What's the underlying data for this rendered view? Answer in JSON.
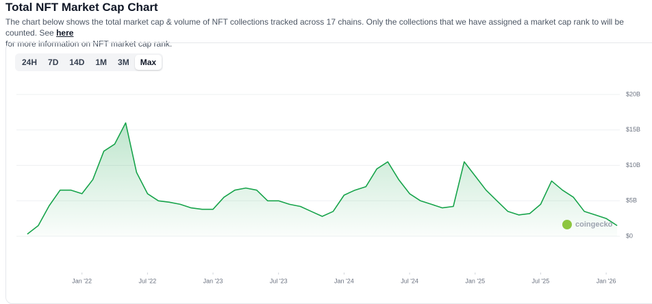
{
  "title": "Total NFT Market Cap Chart",
  "description": "The chart below shows the total market cap & volume of NFT collections tracked across 17 chains. Only the collections that we have assigned a market cap rank to will be counted. See",
  "link_text": "here",
  "description_end": "for more information on NFT market cap rank.",
  "range_buttons": [
    "24H",
    "7D",
    "14D",
    "1M",
    "3M",
    "Max"
  ],
  "selected_index": 5,
  "watermark": "coingecko",
  "chart_data": {
    "type": "area",
    "color": "#16a34a",
    "grid": true,
    "x": [
      "2021-08",
      "2021-09",
      "2021-10",
      "2021-11",
      "2021-12",
      "2022-01",
      "2022-02",
      "2022-03",
      "2022-04",
      "2022-05",
      "2022-06",
      "2022-07",
      "2022-08",
      "2022-09",
      "2022-10",
      "2022-11",
      "2022-12",
      "2023-01",
      "2023-02",
      "2023-03",
      "2023-04",
      "2023-05",
      "2023-06",
      "2023-07",
      "2023-08",
      "2023-09",
      "2023-10",
      "2023-11",
      "2023-12",
      "2024-01",
      "2024-02",
      "2024-03",
      "2024-04",
      "2024-05",
      "2024-06",
      "2024-07",
      "2024-08",
      "2024-09",
      "2024-10",
      "2024-11",
      "2024-12",
      "2025-01",
      "2025-02",
      "2025-03",
      "2025-04",
      "2025-05",
      "2025-06",
      "2025-07",
      "2025-08",
      "2025-09",
      "2025-10",
      "2025-11",
      "2025-12",
      "2026-01",
      "2026-02"
    ],
    "values": [
      0.3,
      1.5,
      4.3,
      6.5,
      6.5,
      6.0,
      8.0,
      12.0,
      13.0,
      16.0,
      9.0,
      6.0,
      5.0,
      4.8,
      4.5,
      4.0,
      3.8,
      3.8,
      5.5,
      6.5,
      6.8,
      6.5,
      5.0,
      5.0,
      4.5,
      4.2,
      3.5,
      2.8,
      3.5,
      5.8,
      6.5,
      7.0,
      9.5,
      10.5,
      8.0,
      6.0,
      5.0,
      4.5,
      4.0,
      4.2,
      10.5,
      8.5,
      6.5,
      5.0,
      3.5,
      3.0,
      3.2,
      4.5,
      7.8,
      6.5,
      5.5,
      3.5,
      3.0,
      2.5,
      1.5
    ],
    "xlim": [
      "2021-07",
      "2026-03"
    ],
    "xticks": [
      {
        "value": "2022-01",
        "label": "Jan '22"
      },
      {
        "value": "2022-07",
        "label": "Jul '22"
      },
      {
        "value": "2023-01",
        "label": "Jan '23"
      },
      {
        "value": "2023-07",
        "label": "Jul '23"
      },
      {
        "value": "2024-01",
        "label": "Jan '24"
      },
      {
        "value": "2024-07",
        "label": "Jul '24"
      },
      {
        "value": "2025-01",
        "label": "Jan '25"
      },
      {
        "value": "2025-07",
        "label": "Jul '25"
      },
      {
        "value": "2026-01",
        "label": "Jan '26"
      }
    ],
    "ylim": [
      0,
      20
    ],
    "yticks": [
      {
        "value": 0,
        "label": "$0"
      },
      {
        "value": 5,
        "label": "$5B"
      },
      {
        "value": 10,
        "label": "$10B"
      },
      {
        "value": 15,
        "label": "$15B"
      },
      {
        "value": 20,
        "label": "$20B"
      }
    ]
  }
}
